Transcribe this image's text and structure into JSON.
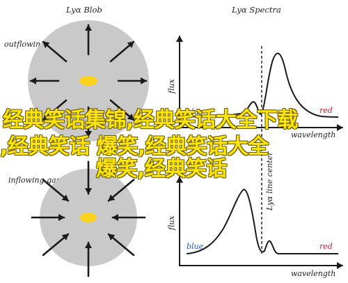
{
  "panels": {
    "left_top_title": "Lyα Blob",
    "left_top_label": "outflowing gas",
    "left_bottom_label": "inflowing gas",
    "right_top_title": "Lyα Spectra",
    "y_axis_label": "flux",
    "x_axis_label": "wavelength",
    "blue_label": "blue",
    "red_label": "red",
    "line_center_label": "Lyα line center"
  },
  "colors": {
    "blob_fill": "#c9c9c9",
    "core_fill": "#ffd21a",
    "blue_text": "#1f56c9",
    "red_text": "#c4232a",
    "overlay_text": "#ffe600"
  },
  "overlay": {
    "line1": "经典笑话集锦,经典笑话大全下载",
    "line2": ",经典笑话 爆笑,经典笑话大全",
    "line3": "爆笑,经典笑话"
  }
}
